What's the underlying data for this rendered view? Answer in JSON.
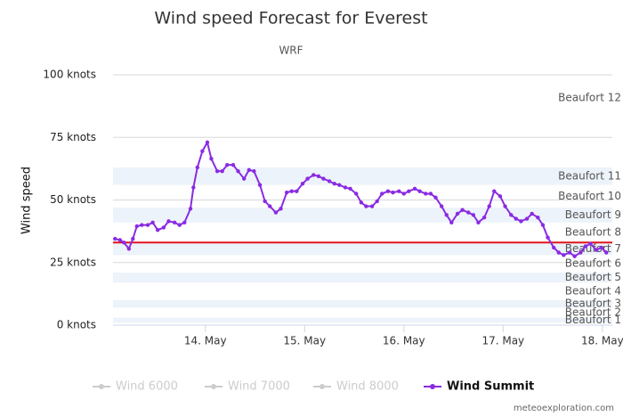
{
  "chart_data": {
    "type": "line",
    "title": "Wind speed Forecast for Everest",
    "subtitle": "WRF",
    "y_label": "Wind speed",
    "credits": "meteoexploration.com",
    "ylim": [
      0,
      100
    ],
    "yticks": [
      {
        "value": 0,
        "label": "0 knots"
      },
      {
        "value": 25,
        "label": "25 knots"
      },
      {
        "value": 50,
        "label": "50 knots"
      },
      {
        "value": 75,
        "label": "75 knots"
      },
      {
        "value": 100,
        "label": "100 knots"
      }
    ],
    "xlim": [
      13.07,
      18.1
    ],
    "xticks": [
      {
        "value": 14,
        "label": "14. May"
      },
      {
        "value": 15,
        "label": "15. May"
      },
      {
        "value": 16,
        "label": "16. May"
      },
      {
        "value": 17,
        "label": "17. May"
      },
      {
        "value": 18,
        "label": "18. May"
      }
    ],
    "grid": true,
    "plot_bands": [
      {
        "label": "Beaufort 1",
        "from": 1,
        "to": 3,
        "color": "#edf3fa"
      },
      {
        "label": "Beaufort 2",
        "from": 4,
        "to": 6,
        "color": "#ffffff"
      },
      {
        "label": "Beaufort 3",
        "from": 7,
        "to": 10,
        "color": "#edf3fa"
      },
      {
        "label": "Beaufort 4",
        "from": 11,
        "to": 16,
        "color": "#ffffff"
      },
      {
        "label": "Beaufort 5",
        "from": 17,
        "to": 21,
        "color": "#edf3fa"
      },
      {
        "label": "Beaufort 6",
        "from": 22,
        "to": 27,
        "color": "#ffffff"
      },
      {
        "label": "Beaufort 7",
        "from": 28,
        "to": 33,
        "color": "#edf3fa"
      },
      {
        "label": "Beaufort 8",
        "from": 34,
        "to": 40,
        "color": "#ffffff"
      },
      {
        "label": "Beaufort 9",
        "from": 41,
        "to": 47,
        "color": "#edf3fa"
      },
      {
        "label": "Beaufort 10",
        "from": 48,
        "to": 55,
        "color": "#ffffff"
      },
      {
        "label": "Beaufort 11",
        "from": 56,
        "to": 63,
        "color": "#edf3fa"
      },
      {
        "label": "Beaufort 12",
        "from": 64,
        "to": 100,
        "color": "#ffffff"
      }
    ],
    "plot_lines": [
      {
        "value": 33,
        "color": "#e0141e"
      }
    ],
    "x": [
      13.09,
      13.14,
      13.18,
      13.23,
      13.27,
      13.31,
      13.36,
      13.42,
      13.47,
      13.52,
      13.58,
      13.63,
      13.69,
      13.74,
      13.79,
      13.85,
      13.88,
      13.92,
      13.97,
      14.02,
      14.06,
      14.12,
      14.17,
      14.22,
      14.28,
      14.33,
      14.39,
      14.44,
      14.49,
      14.55,
      14.6,
      14.65,
      14.71,
      14.76,
      14.82,
      14.87,
      14.92,
      14.98,
      15.03,
      15.09,
      15.14,
      15.19,
      15.25,
      15.3,
      15.35,
      15.41,
      15.46,
      15.52,
      15.57,
      15.62,
      15.68,
      15.73,
      15.78,
      15.84,
      15.89,
      15.95,
      16.0,
      16.05,
      16.11,
      16.16,
      16.22,
      16.27,
      16.32,
      16.38,
      16.43,
      16.48,
      16.54,
      16.59,
      16.65,
      16.7,
      16.75,
      16.81,
      16.86,
      16.91,
      16.97,
      17.02,
      17.08,
      17.13,
      17.18,
      17.24,
      17.29,
      17.35,
      17.4,
      17.45,
      17.51,
      17.56,
      17.61,
      17.67,
      17.72,
      17.78,
      17.83,
      17.88,
      17.94,
      17.99,
      18.04
    ],
    "series": [
      {
        "name": "Wind 6000",
        "color": "#cccccc",
        "visible": false
      },
      {
        "name": "Wind 7000",
        "color": "#cccccc",
        "visible": false
      },
      {
        "name": "Wind 8000",
        "color": "#cccccc",
        "visible": false
      },
      {
        "name": "Wind Summit",
        "color": "#8a2be2",
        "visible": true,
        "values": [
          34.5,
          34,
          33,
          30.5,
          34.5,
          39.5,
          40,
          40,
          41,
          38,
          39,
          41.5,
          41,
          40,
          41,
          46.5,
          55,
          63,
          69.5,
          73,
          66.5,
          61.5,
          61.5,
          64,
          64,
          61.5,
          58.5,
          62,
          61.5,
          56,
          49.5,
          47.5,
          45,
          46.5,
          53,
          53.5,
          53.5,
          56.5,
          58.5,
          60,
          59.5,
          58.5,
          57.5,
          56.5,
          56,
          55,
          54.5,
          52.5,
          49,
          47.5,
          47.5,
          49.5,
          52.5,
          53.5,
          53,
          53.5,
          52.5,
          53.5,
          54.5,
          53.5,
          52.5,
          52.5,
          51,
          47.5,
          44,
          41,
          44.5,
          46,
          45,
          44,
          41,
          43,
          47.5,
          53.5,
          51.5,
          47.5,
          44,
          42.5,
          41.5,
          42.5,
          44.5,
          43,
          40,
          35,
          31,
          29,
          28,
          29,
          27.5,
          29,
          31.5,
          32.5,
          30,
          31,
          29
        ]
      }
    ]
  }
}
